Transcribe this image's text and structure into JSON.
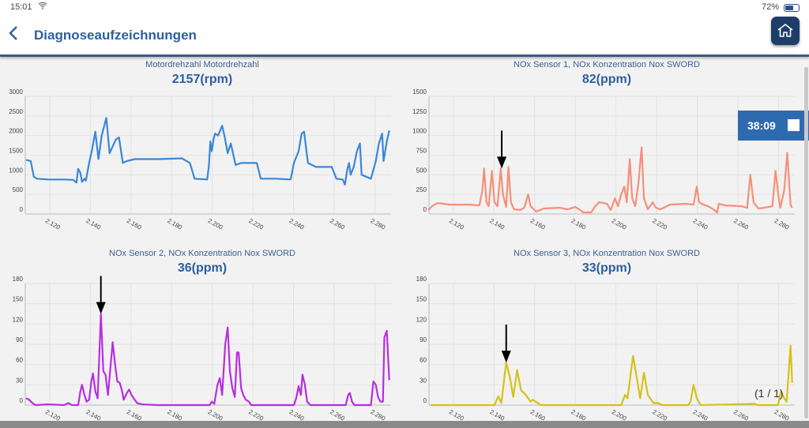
{
  "status": {
    "time": "15:01",
    "battery": "72%",
    "battery_level": 0.72
  },
  "header": {
    "title": "Diagnoseaufzeichnungen"
  },
  "timer": {
    "label": "38:09"
  },
  "pager": {
    "label": "(1 / 1)"
  },
  "colors": {
    "accent": "#2d5f9f",
    "timer_bg": "#2e6ab0"
  },
  "chart_data": [
    {
      "type": "line",
      "title": "Motordrehzahl Motordrehzahl",
      "value": "2157(rpm)",
      "color": "#3a87d6",
      "xlim": [
        2.108,
        2.288
      ],
      "xticks": [
        "2.120",
        "2.140",
        "2.160",
        "2.180",
        "2.200",
        "2.220",
        "2.240",
        "2.260",
        "2.280"
      ],
      "ylim": [
        0,
        3000
      ],
      "yticks": [
        "0",
        "500",
        "1000",
        "1500",
        "2000",
        "2500",
        "3000"
      ],
      "grid": true,
      "markers": [],
      "points": [
        [
          2.1084,
          1380
        ],
        [
          2.1107,
          1350
        ],
        [
          2.1122,
          950
        ],
        [
          2.1138,
          900
        ],
        [
          2.1192,
          880
        ],
        [
          2.127,
          880
        ],
        [
          2.1316,
          870
        ],
        [
          2.1332,
          800
        ],
        [
          2.134,
          1150
        ],
        [
          2.1351,
          1050
        ],
        [
          2.1359,
          820
        ],
        [
          2.1371,
          900
        ],
        [
          2.1378,
          850
        ],
        [
          2.1394,
          1300
        ],
        [
          2.1409,
          1650
        ],
        [
          2.1425,
          2100
        ],
        [
          2.144,
          1400
        ],
        [
          2.1456,
          2000
        ],
        [
          2.1479,
          2450
        ],
        [
          2.1495,
          1550
        ],
        [
          2.1526,
          1900
        ],
        [
          2.1541,
          1950
        ],
        [
          2.156,
          1300
        ],
        [
          2.158,
          1350
        ],
        [
          2.1619,
          1400
        ],
        [
          2.1735,
          1400
        ],
        [
          2.1851,
          1420
        ],
        [
          2.189,
          1300
        ],
        [
          2.1913,
          900
        ],
        [
          2.1975,
          880
        ],
        [
          2.1983,
          1200
        ],
        [
          2.1991,
          1850
        ],
        [
          2.1998,
          1600
        ],
        [
          2.2006,
          1900
        ],
        [
          2.2014,
          2050
        ],
        [
          2.2029,
          2000
        ],
        [
          2.2049,
          2250
        ],
        [
          2.206,
          2000
        ],
        [
          2.2076,
          1550
        ],
        [
          2.2091,
          1800
        ],
        [
          2.2115,
          1250
        ],
        [
          2.2142,
          1300
        ],
        [
          2.2219,
          1300
        ],
        [
          2.2239,
          900
        ],
        [
          2.2316,
          900
        ],
        [
          2.2386,
          880
        ],
        [
          2.2402,
          1300
        ],
        [
          2.2425,
          1600
        ],
        [
          2.244,
          2050
        ],
        [
          2.2452,
          2100
        ],
        [
          2.2471,
          1300
        ],
        [
          2.2491,
          1250
        ],
        [
          2.251,
          1200
        ],
        [
          2.2588,
          1200
        ],
        [
          2.2611,
          900
        ],
        [
          2.2642,
          880
        ],
        [
          2.2653,
          750
        ],
        [
          2.2665,
          1150
        ],
        [
          2.2673,
          1300
        ],
        [
          2.2681,
          1000
        ],
        [
          2.2696,
          1200
        ],
        [
          2.2712,
          1600
        ],
        [
          2.2727,
          1800
        ],
        [
          2.2735,
          1000
        ],
        [
          2.2781,
          900
        ],
        [
          2.2805,
          1350
        ],
        [
          2.282,
          1800
        ],
        [
          2.2836,
          2050
        ],
        [
          2.2843,
          1350
        ],
        [
          2.2859,
          1850
        ],
        [
          2.2871,
          2130
        ]
      ]
    },
    {
      "type": "line",
      "title": "NOx Sensor 1, NOx Konzentration Nox SWORD",
      "value": "82(ppm)",
      "color": "#f4907a",
      "xlim": [
        2.108,
        2.288
      ],
      "xticks": [
        "2.120",
        "2.140",
        "2.160",
        "2.180",
        "2.200",
        "2.220",
        "2.240",
        "2.260",
        "2.280"
      ],
      "ylim": [
        0,
        1500
      ],
      "yticks": [
        "0",
        "250",
        "500",
        "750",
        "1000",
        "1250",
        "1500"
      ],
      "grid": true,
      "markers": [
        [
          2.1438,
          580
        ]
      ],
      "points": [
        [
          2.1076,
          50
        ],
        [
          2.1095,
          100
        ],
        [
          2.1122,
          140
        ],
        [
          2.1181,
          120
        ],
        [
          2.1278,
          120
        ],
        [
          2.1328,
          110
        ],
        [
          2.1343,
          300
        ],
        [
          2.1351,
          580
        ],
        [
          2.1363,
          150
        ],
        [
          2.1374,
          100
        ],
        [
          2.139,
          550
        ],
        [
          2.1402,
          150
        ],
        [
          2.1417,
          100
        ],
        [
          2.1433,
          580
        ],
        [
          2.1444,
          250
        ],
        [
          2.146,
          90
        ],
        [
          2.1471,
          600
        ],
        [
          2.1483,
          150
        ],
        [
          2.1498,
          60
        ],
        [
          2.1529,
          50
        ],
        [
          2.1549,
          80
        ],
        [
          2.1568,
          250
        ],
        [
          2.158,
          100
        ],
        [
          2.1607,
          30
        ],
        [
          2.1646,
          70
        ],
        [
          2.1723,
          80
        ],
        [
          2.1762,
          60
        ],
        [
          2.1801,
          90
        ],
        [
          2.184,
          20
        ],
        [
          2.1878,
          20
        ],
        [
          2.1898,
          100
        ],
        [
          2.1917,
          150
        ],
        [
          2.1956,
          130
        ],
        [
          2.1975,
          50
        ],
        [
          2.1995,
          200
        ],
        [
          2.201,
          100
        ],
        [
          2.2026,
          250
        ],
        [
          2.2041,
          350
        ],
        [
          2.2053,
          150
        ],
        [
          2.2068,
          700
        ],
        [
          2.208,
          200
        ],
        [
          2.2095,
          100
        ],
        [
          2.2111,
          400
        ],
        [
          2.2126,
          850
        ],
        [
          2.2138,
          200
        ],
        [
          2.2157,
          60
        ],
        [
          2.2181,
          150
        ],
        [
          2.2196,
          80
        ],
        [
          2.2219,
          60
        ],
        [
          2.2266,
          120
        ],
        [
          2.2343,
          130
        ],
        [
          2.2382,
          120
        ],
        [
          2.2398,
          350
        ],
        [
          2.2409,
          150
        ],
        [
          2.2429,
          120
        ],
        [
          2.2452,
          100
        ],
        [
          2.2479,
          60
        ],
        [
          2.2498,
          20
        ],
        [
          2.2506,
          130
        ],
        [
          2.2537,
          110
        ],
        [
          2.2615,
          100
        ],
        [
          2.2646,
          80
        ],
        [
          2.2661,
          500
        ],
        [
          2.2677,
          150
        ],
        [
          2.27,
          70
        ],
        [
          2.2731,
          80
        ],
        [
          2.277,
          100
        ],
        [
          2.2785,
          550
        ],
        [
          2.2801,
          200
        ],
        [
          2.2809,
          80
        ],
        [
          2.2828,
          300
        ],
        [
          2.2843,
          780
        ],
        [
          2.2859,
          120
        ],
        [
          2.2867,
          80
        ]
      ]
    },
    {
      "type": "line",
      "title": "NOx Sensor 2, NOx Konzentration Nox SWORD",
      "value": "36(ppm)",
      "color": "#b82ee0",
      "xlim": [
        2.108,
        2.288
      ],
      "xticks": [
        "2.120",
        "2.140",
        "2.160",
        "2.180",
        "2.200",
        "2.220",
        "2.240",
        "2.260",
        "2.280"
      ],
      "ylim": [
        0,
        180
      ],
      "yticks": [
        "0",
        "30",
        "60",
        "90",
        "120",
        "150",
        "180"
      ],
      "grid": true,
      "markers": [
        [
          2.1452,
          135
        ]
      ],
      "points": [
        [
          2.1084,
          10
        ],
        [
          2.1099,
          8
        ],
        [
          2.1115,
          3
        ],
        [
          2.113,
          0
        ],
        [
          2.1192,
          1
        ],
        [
          2.127,
          0
        ],
        [
          2.1293,
          3
        ],
        [
          2.1309,
          0
        ],
        [
          2.134,
          0
        ],
        [
          2.1351,
          20
        ],
        [
          2.1359,
          30
        ],
        [
          2.1371,
          15
        ],
        [
          2.1382,
          5
        ],
        [
          2.1394,
          8
        ],
        [
          2.1405,
          35
        ],
        [
          2.1413,
          47
        ],
        [
          2.1425,
          20
        ],
        [
          2.1436,
          10
        ],
        [
          2.1452,
          135
        ],
        [
          2.1464,
          50
        ],
        [
          2.1475,
          45
        ],
        [
          2.1487,
          15
        ],
        [
          2.1502,
          65
        ],
        [
          2.151,
          93
        ],
        [
          2.1522,
          60
        ],
        [
          2.1533,
          35
        ],
        [
          2.1545,
          33
        ],
        [
          2.1557,
          20
        ],
        [
          2.1564,
          8
        ],
        [
          2.158,
          18
        ],
        [
          2.1591,
          23
        ],
        [
          2.1603,
          15
        ],
        [
          2.1619,
          8
        ],
        [
          2.163,
          3
        ],
        [
          2.1657,
          1
        ],
        [
          2.1735,
          0
        ],
        [
          2.1987,
          0
        ],
        [
          2.1998,
          5
        ],
        [
          2.201,
          2
        ],
        [
          2.2026,
          30
        ],
        [
          2.2037,
          40
        ],
        [
          2.2049,
          15
        ],
        [
          2.2064,
          90
        ],
        [
          2.2076,
          115
        ],
        [
          2.2087,
          50
        ],
        [
          2.2099,
          25
        ],
        [
          2.2111,
          12
        ],
        [
          2.2122,
          78
        ],
        [
          2.213,
          78
        ],
        [
          2.2142,
          25
        ],
        [
          2.2153,
          15
        ],
        [
          2.2165,
          8
        ],
        [
          2.2181,
          5
        ],
        [
          2.2192,
          0
        ],
        [
          2.2402,
          0
        ],
        [
          2.2413,
          10
        ],
        [
          2.2425,
          28
        ],
        [
          2.2436,
          15
        ],
        [
          2.2444,
          45
        ],
        [
          2.2456,
          30
        ],
        [
          2.2467,
          5
        ],
        [
          2.2483,
          0
        ],
        [
          2.2657,
          0
        ],
        [
          2.2669,
          15
        ],
        [
          2.2677,
          18
        ],
        [
          2.2688,
          5
        ],
        [
          2.27,
          0
        ],
        [
          2.2781,
          0
        ],
        [
          2.2793,
          35
        ],
        [
          2.2805,
          30
        ],
        [
          2.2816,
          12
        ],
        [
          2.2828,
          5
        ],
        [
          2.284,
          5
        ],
        [
          2.2847,
          100
        ],
        [
          2.2859,
          110
        ],
        [
          2.2871,
          37
        ]
      ]
    },
    {
      "type": "line",
      "title": "NOx Sensor 3, NOx Konzentration Nox SWORD",
      "value": "33(ppm)",
      "color": "#d4c21a",
      "xlim": [
        2.108,
        2.288
      ],
      "xticks": [
        "2.120",
        "2.140",
        "2.160",
        "2.180",
        "2.200",
        "2.220",
        "2.240",
        "2.260",
        "2.280"
      ],
      "ylim": [
        0,
        180
      ],
      "yticks": [
        "0",
        "30",
        "60",
        "90",
        "120",
        "150",
        "180"
      ],
      "grid": true,
      "markers": [
        [
          2.146,
          63
        ]
      ],
      "points": [
        [
          2.1088,
          0
        ],
        [
          2.1402,
          0
        ],
        [
          2.1421,
          13
        ],
        [
          2.1436,
          3
        ],
        [
          2.146,
          63
        ],
        [
          2.1479,
          40
        ],
        [
          2.1495,
          12
        ],
        [
          2.1514,
          52
        ],
        [
          2.1533,
          22
        ],
        [
          2.1557,
          15
        ],
        [
          2.158,
          5
        ],
        [
          2.1591,
          8
        ],
        [
          2.163,
          0
        ],
        [
          2.2026,
          0
        ],
        [
          2.2045,
          15
        ],
        [
          2.2057,
          10
        ],
        [
          2.2084,
          73
        ],
        [
          2.2103,
          40
        ],
        [
          2.2119,
          10
        ],
        [
          2.2138,
          48
        ],
        [
          2.2157,
          15
        ],
        [
          2.2185,
          3
        ],
        [
          2.2208,
          3
        ],
        [
          2.2227,
          0
        ],
        [
          2.2355,
          0
        ],
        [
          2.2367,
          5
        ],
        [
          2.2382,
          30
        ],
        [
          2.2398,
          10
        ],
        [
          2.2417,
          0
        ],
        [
          2.2681,
          2
        ],
        [
          2.2696,
          0
        ],
        [
          2.2797,
          0
        ],
        [
          2.2812,
          20
        ],
        [
          2.2828,
          10
        ],
        [
          2.284,
          5
        ],
        [
          2.2859,
          88
        ],
        [
          2.2867,
          33
        ]
      ]
    }
  ]
}
